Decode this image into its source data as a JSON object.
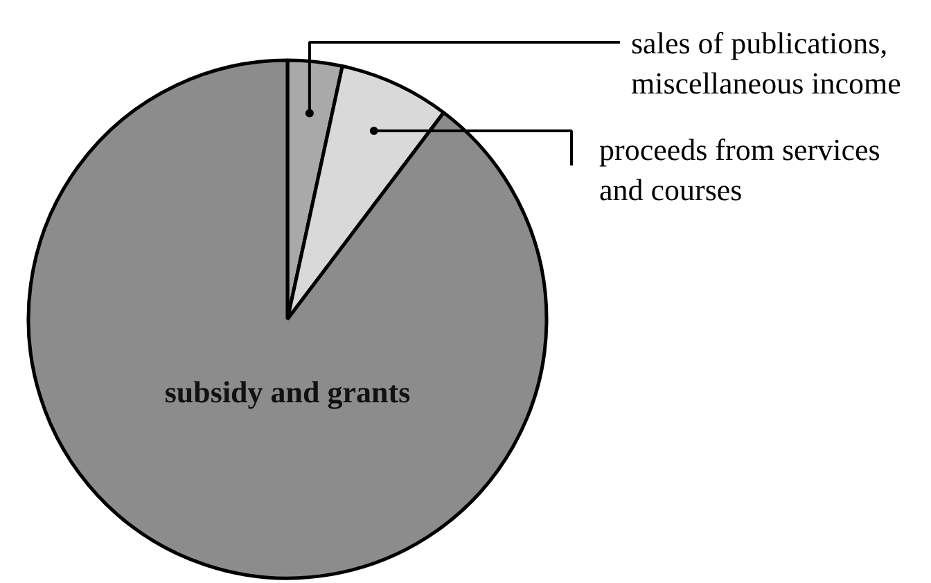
{
  "chart_data": {
    "type": "pie",
    "categories": [
      "sales of publications, miscellaneous income",
      "proceeds from services and courses",
      "subsidy and grants"
    ],
    "values": [
      3.4,
      6.9,
      89.7
    ],
    "colors": [
      "#a9a9a9",
      "#d9d9d9",
      "#8c8c8c"
    ]
  }
}
